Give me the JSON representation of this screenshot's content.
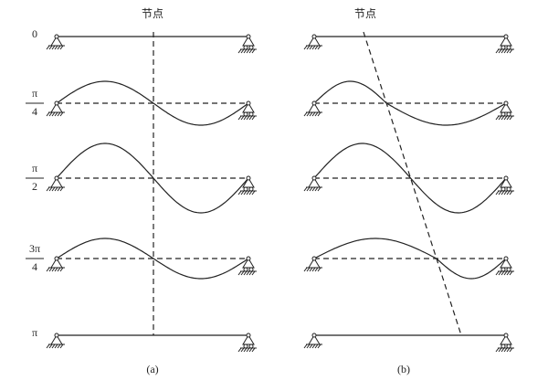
{
  "panels": [
    {
      "node_label": "节点",
      "caption": "(a)"
    },
    {
      "node_label": "节点",
      "caption": "(b)"
    }
  ],
  "rows": [
    {
      "label": "0"
    },
    {
      "numerator": "π",
      "denominator": "4"
    },
    {
      "numerator": "π",
      "denominator": "2"
    },
    {
      "numerator": "3π",
      "denominator": "4"
    },
    {
      "label": "π"
    }
  ]
}
